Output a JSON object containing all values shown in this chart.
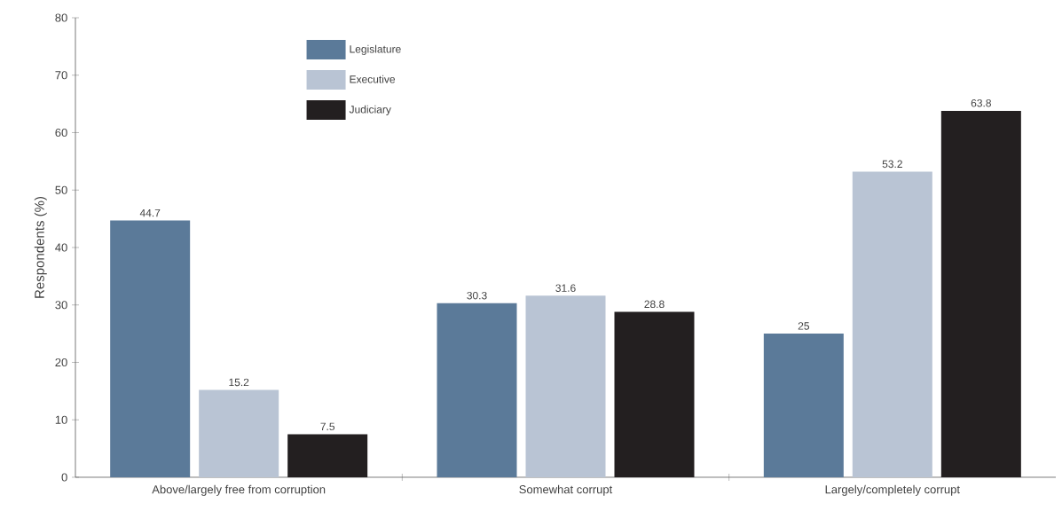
{
  "chart_data": {
    "type": "bar",
    "ylabel": "Respondents (%)",
    "categories": [
      "Above/largely free from corruption",
      "Somewhat corrupt",
      "Largely/completely corrupt"
    ],
    "series": [
      {
        "name": "Legislature",
        "color": "#5b7a99",
        "values": [
          44.7,
          30.3,
          25
        ]
      },
      {
        "name": "Executive",
        "color": "#b9c4d4",
        "values": [
          15.2,
          31.6,
          53.2
        ]
      },
      {
        "name": "Judiciary",
        "color": "#231f20",
        "values": [
          7.5,
          28.8,
          63.8
        ]
      }
    ],
    "ylim": [
      0,
      80
    ],
    "yticks": [
      0,
      10,
      20,
      30,
      40,
      50,
      60,
      70,
      80
    ],
    "data_labels": true,
    "legend": "top left"
  }
}
